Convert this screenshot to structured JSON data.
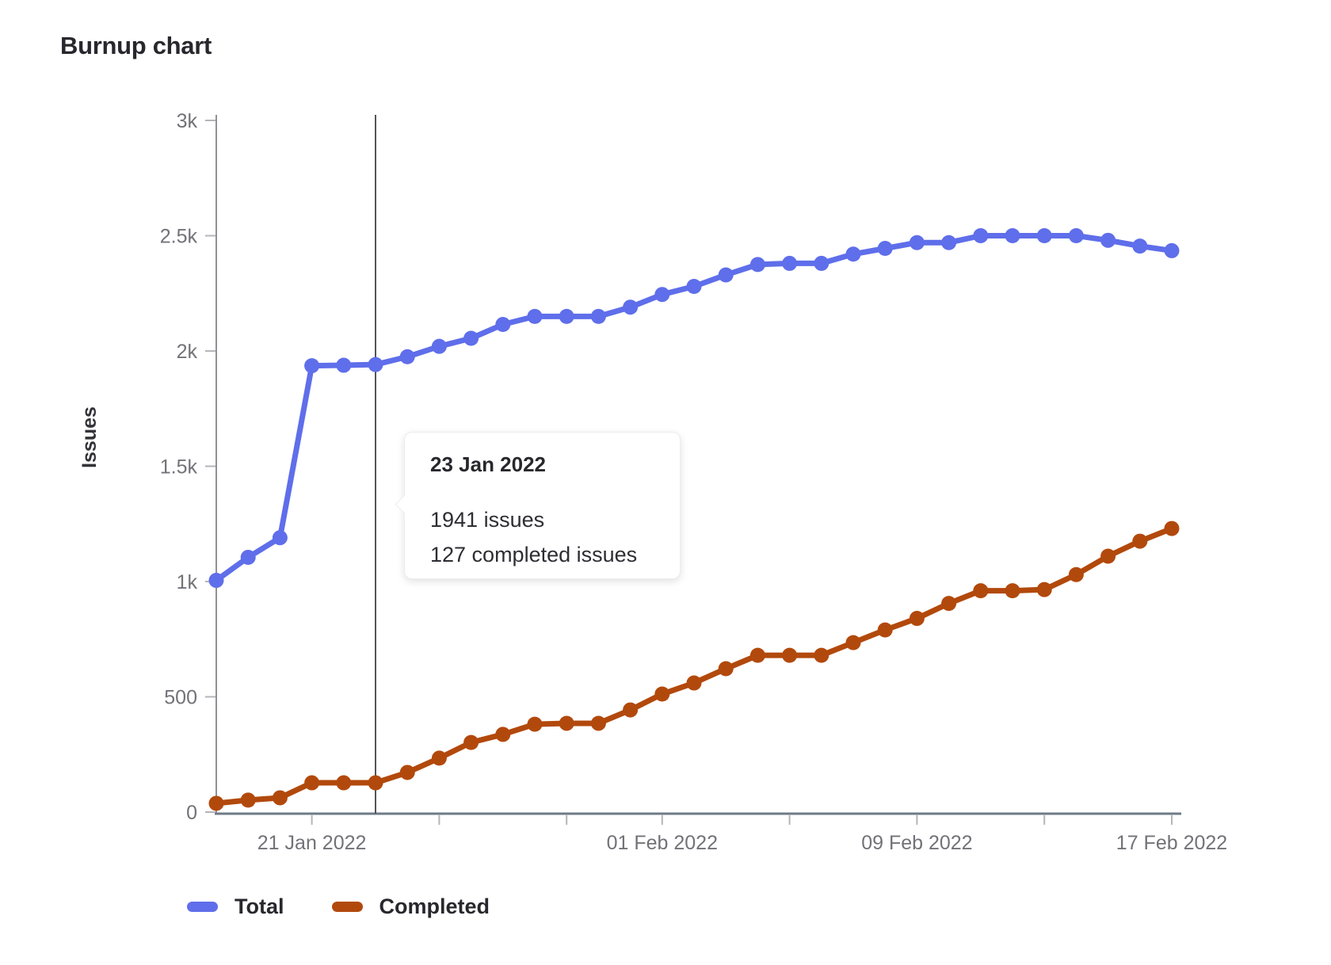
{
  "page_title": "Burnup chart",
  "colors": {
    "axis": "#909095",
    "x_axis": "#6e7a86",
    "tick": "#b5b5ba",
    "tick_label": "#737278",
    "axis_title": "#333238",
    "hover_line": "#55545a",
    "text_dark": "#28272d"
  },
  "chart_data": {
    "type": "line",
    "title": "Burnup chart",
    "xlabel": "",
    "ylabel": "Issues",
    "ylim": [
      0,
      3000
    ],
    "grid": false,
    "legend_position": "bottom-left",
    "x": [
      "18 Jan 2022",
      "19 Jan 2022",
      "20 Jan 2022",
      "21 Jan 2022",
      "22 Jan 2022",
      "23 Jan 2022",
      "24 Jan 2022",
      "25 Jan 2022",
      "26 Jan 2022",
      "27 Jan 2022",
      "28 Jan 2022",
      "29 Jan 2022",
      "30 Jan 2022",
      "31 Jan 2022",
      "01 Feb 2022",
      "02 Feb 2022",
      "03 Feb 2022",
      "04 Feb 2022",
      "05 Feb 2022",
      "06 Feb 2022",
      "07 Feb 2022",
      "08 Feb 2022",
      "09 Feb 2022",
      "10 Feb 2022",
      "11 Feb 2022",
      "12 Feb 2022",
      "13 Feb 2022",
      "14 Feb 2022",
      "15 Feb 2022",
      "16 Feb 2022",
      "17 Feb 2022"
    ],
    "series": [
      {
        "name": "Total",
        "color": "#5f6eea",
        "values": [
          1005,
          1105,
          1190,
          1936,
          1938,
          1941,
          1975,
          2020,
          2055,
          2115,
          2150,
          2150,
          2150,
          2190,
          2245,
          2280,
          2330,
          2375,
          2380,
          2380,
          2420,
          2445,
          2470,
          2470,
          2500,
          2500,
          2500,
          2500,
          2480,
          2455,
          2435
        ]
      },
      {
        "name": "Completed",
        "color": "#b2490c",
        "values": [
          38,
          52,
          62,
          127,
          127,
          127,
          172,
          234,
          302,
          337,
          381,
          385,
          385,
          443,
          512,
          560,
          622,
          680,
          680,
          680,
          735,
          790,
          840,
          905,
          960,
          960,
          965,
          1030,
          1110,
          1175,
          1230
        ]
      }
    ],
    "y_ticks": [
      {
        "value": 0,
        "label": "0"
      },
      {
        "value": 500,
        "label": "500"
      },
      {
        "value": 1000,
        "label": "1k"
      },
      {
        "value": 1500,
        "label": "1.5k"
      },
      {
        "value": 2000,
        "label": "2k"
      },
      {
        "value": 2500,
        "label": "2.5k"
      },
      {
        "value": 3000,
        "label": "3k"
      }
    ],
    "x_ticks": [
      {
        "index": 3,
        "label": "21 Jan 2022"
      },
      {
        "index": 7,
        "label": ""
      },
      {
        "index": 11,
        "label": ""
      },
      {
        "index": 14,
        "label": "01 Feb 2022"
      },
      {
        "index": 18,
        "label": ""
      },
      {
        "index": 22,
        "label": "09 Feb 2022"
      },
      {
        "index": 26,
        "label": ""
      },
      {
        "index": 30,
        "label": "17 Feb 2022"
      }
    ],
    "hover_index": 5
  },
  "tooltip": {
    "title": "23 Jan 2022",
    "lines": [
      "1941 issues",
      "127 completed issues"
    ]
  },
  "legend": {
    "items": [
      {
        "label": "Total"
      },
      {
        "label": "Completed"
      }
    ]
  }
}
